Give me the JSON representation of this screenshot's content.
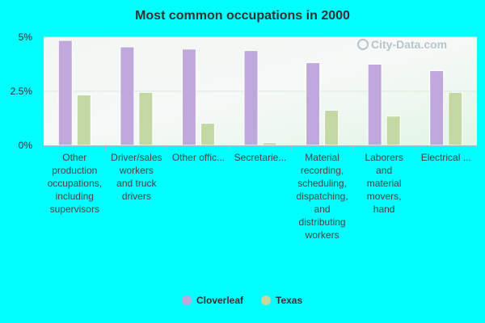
{
  "chart_data": {
    "type": "bar",
    "title": "Most common occupations in 2000",
    "categories": [
      "Other production occupations, including supervisors",
      "Driver/sales workers and truck drivers",
      "Other office and administrative support workers, including supervisors",
      "Secretaries and administrative assistants",
      "Material recording, scheduling, dispatching, and distributing workers",
      "Laborers and material movers, hand",
      "Electrical equipment mechanics and other installation, maintenance, and repair workers, including supervisors"
    ],
    "category_display_lines": [
      [
        "Other",
        "production",
        "occupations,",
        "including",
        "supervisors"
      ],
      [
        "Driver/sales",
        "workers",
        "and truck",
        "drivers"
      ],
      [
        "Other offic..."
      ],
      [
        "Secretarie..."
      ],
      [
        "Material",
        "recording,",
        "scheduling,",
        "dispatching,",
        "and",
        "distributing",
        "workers"
      ],
      [
        "Laborers",
        "and",
        "material",
        "movers,",
        "hand"
      ],
      [
        "Electrical ..."
      ]
    ],
    "series": [
      {
        "name": "Cloverleaf",
        "color": "#c0a8dc",
        "values": [
          4.85,
          4.55,
          4.45,
          4.38,
          3.82,
          3.75,
          3.45
        ]
      },
      {
        "name": "Texas",
        "color": "#c4d8a4",
        "values": [
          2.33,
          2.45,
          1.02,
          0.12,
          1.62,
          1.35,
          2.45
        ]
      }
    ],
    "ylim": [
      0,
      5
    ],
    "yticks": [
      0,
      2.5,
      5
    ],
    "ytick_labels": [
      "0%",
      "2.5%",
      "5%"
    ],
    "xlabel": "",
    "ylabel": "",
    "grid": true,
    "legend_position": "bottom-center"
  },
  "watermark_text": "City-Data.com"
}
